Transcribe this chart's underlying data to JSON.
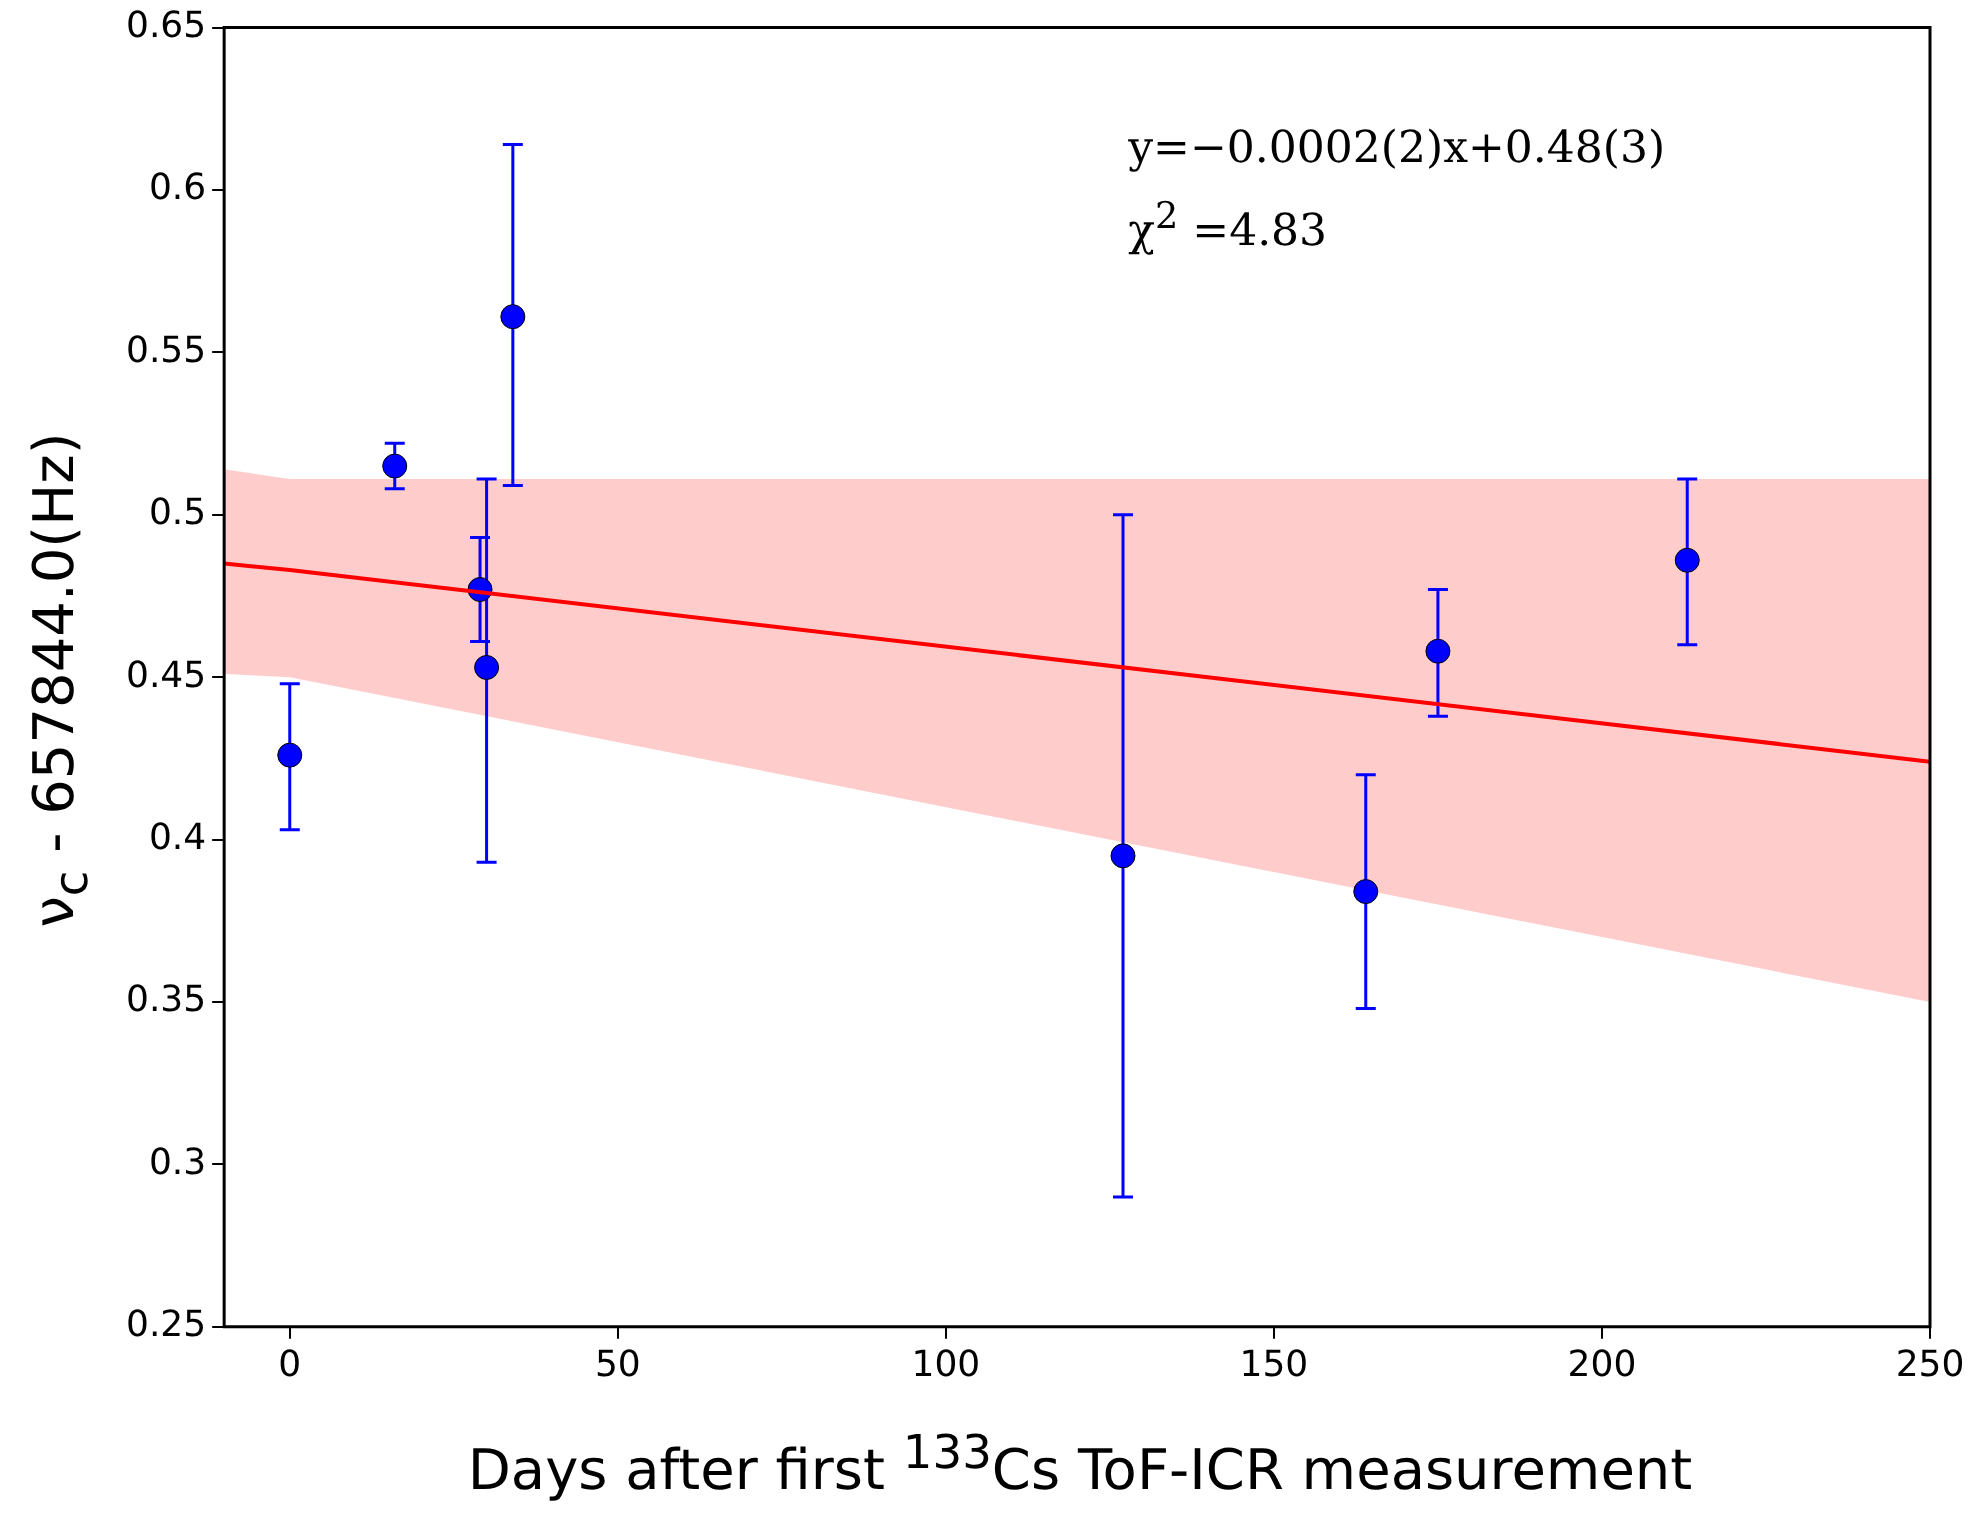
{
  "chart_data": {
    "type": "scatter",
    "xlabel": "Days after first $^{133}$Cs ToF-ICR measurement",
    "ylabel": "ν$_{c}$ - 657844.0(Hz)",
    "annotations": [
      "y=−0.0002(2)x+0.48(3)",
      "χ$^{2}$ =4.83"
    ],
    "xlim": [
      -10,
      250
    ],
    "xticks": [
      0,
      50,
      100,
      150,
      200,
      250
    ],
    "ylim": [
      0.25,
      0.65
    ],
    "yticks": [
      0.25,
      0.3,
      0.35,
      0.4,
      0.45,
      0.5,
      0.55,
      0.6,
      0.65
    ],
    "grid": false,
    "legend": false,
    "marker": "circle",
    "series": [
      {
        "type": "line",
        "color": "#ff0000",
        "line_style": "solid",
        "marker": "none",
        "x": [
          -10,
          0,
          250
        ],
        "values": [
          0.485,
          0.483,
          0.424
        ],
        "lower": [
          0.451,
          0.45,
          0.35
        ],
        "upper": [
          0.514,
          0.511,
          0.511
        ]
      },
      {
        "type": "scatter",
        "color": "#0000ff",
        "x": [
          0,
          16,
          29,
          30,
          34,
          127,
          164,
          175,
          213
        ],
        "values": [
          0.426,
          0.515,
          0.477,
          0.453,
          0.561,
          0.395,
          0.384,
          0.458,
          0.486
        ],
        "errors": [
          [
            0.403,
            0.448
          ],
          [
            0.508,
            0.522
          ],
          [
            0.461,
            0.493
          ],
          [
            0.393,
            0.511
          ],
          [
            0.509,
            0.614
          ],
          [
            0.29,
            0.5
          ],
          [
            0.348,
            0.42
          ],
          [
            0.438,
            0.477
          ],
          [
            0.46,
            0.511
          ]
        ]
      }
    ]
  }
}
